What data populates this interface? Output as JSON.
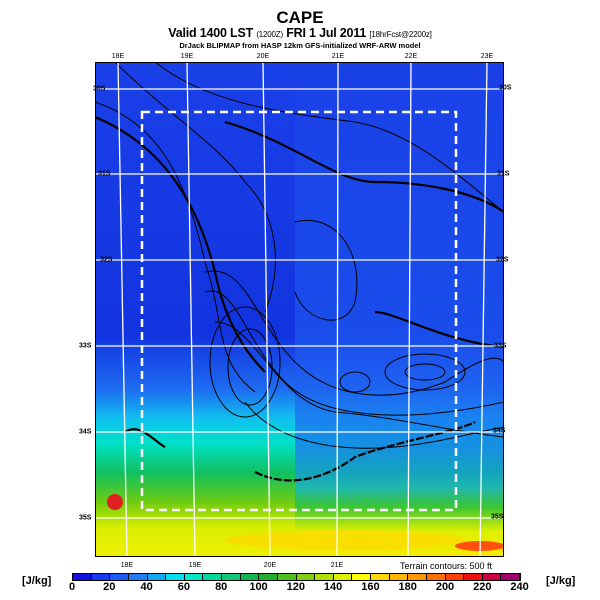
{
  "header": {
    "title": "CAPE",
    "valid": "Valid 1400 LST",
    "valid_utc": "(1200Z)",
    "valid_date": "FRI 1 Jul 2011",
    "forecast": "[18hrFcst@2200z]",
    "credit": "DrJack BLIPMAP from HASP 12km GFS-initialized WRF-ARW model"
  },
  "map": {
    "top_lon_labels": [
      "18E",
      "19E",
      "20E",
      "21E",
      "22E",
      "23E"
    ],
    "bottom_lon_labels": [
      "18E",
      "19E",
      "20E",
      "21E"
    ],
    "left_lat_labels": [
      "30S",
      "31S",
      "32S",
      "33S",
      "34S",
      "35S"
    ],
    "right_lat_labels": [
      "30S",
      "31S",
      "32S",
      "33S",
      "34S",
      "35S"
    ],
    "terrain_note": "Terrain contours: 500 ft"
  },
  "colorbar": {
    "unit_left": "[J/kg]",
    "unit_right": "[J/kg]",
    "labels": [
      "0",
      "20",
      "40",
      "60",
      "80",
      "100",
      "120",
      "140",
      "160",
      "180",
      "200",
      "220",
      "240"
    ],
    "colors": [
      "#1010e0",
      "#1a3af0",
      "#1e5af5",
      "#1e7cf5",
      "#14a8f0",
      "#00e0f0",
      "#00e8c8",
      "#00d8a0",
      "#10c878",
      "#10b850",
      "#20b030",
      "#50c020",
      "#80d010",
      "#b0e000",
      "#e0f000",
      "#ffff00",
      "#ffd800",
      "#ffb800",
      "#ff9800",
      "#ff7000",
      "#ff4000",
      "#f01010",
      "#d00040",
      "#a00070",
      "#800080"
    ]
  }
}
